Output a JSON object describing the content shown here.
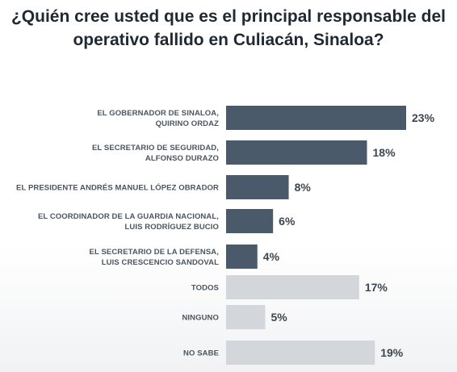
{
  "title_lines": [
    "¿Quién cree usted que es el principal responsable del",
    "operativo fallido en Culiacán, Sinaloa?"
  ],
  "colors": {
    "primary_bar": "#4b5a6b",
    "secondary_bar": "#d3d6da",
    "value_text": "#3d4650",
    "category_text": "#4a5560"
  },
  "chart_data": {
    "type": "bar",
    "orientation": "horizontal",
    "title": "¿Quién cree usted que es el principal responsable del operativo fallido en Culiacán, Sinaloa?",
    "xlabel": "",
    "ylabel": "",
    "grid": false,
    "categories": [
      [
        "EL GOBERNADOR DE SINALOA,",
        "QUIRINO ORDAZ"
      ],
      [
        "EL SECRETARIO DE SEGURIDAD,",
        "ALFONSO DURAZO"
      ],
      [
        "EL PRESIDENTE ANDRÉS MANUEL LÓPEZ OBRADOR"
      ],
      [
        "EL COORDINADOR DE LA GUARDIA NACIONAL,",
        "LUIS RODRÍGUEZ BUCIO"
      ],
      [
        "EL SECRETARIO DE LA DEFENSA,",
        "LUIS CRESCENCIO SANDOVAL"
      ],
      [
        "TODOS"
      ],
      [
        "NINGUNO"
      ],
      [
        "NO SABE"
      ]
    ],
    "values": [
      23,
      18,
      8,
      6,
      4,
      17,
      5,
      19
    ],
    "value_labels": [
      "23%",
      "18%",
      "8%",
      "6%",
      "4%",
      "17%",
      "5%",
      "19%"
    ],
    "bar_style": [
      "primary",
      "primary",
      "primary",
      "primary",
      "primary",
      "secondary",
      "secondary",
      "secondary"
    ],
    "xlim": [
      0,
      23
    ]
  }
}
